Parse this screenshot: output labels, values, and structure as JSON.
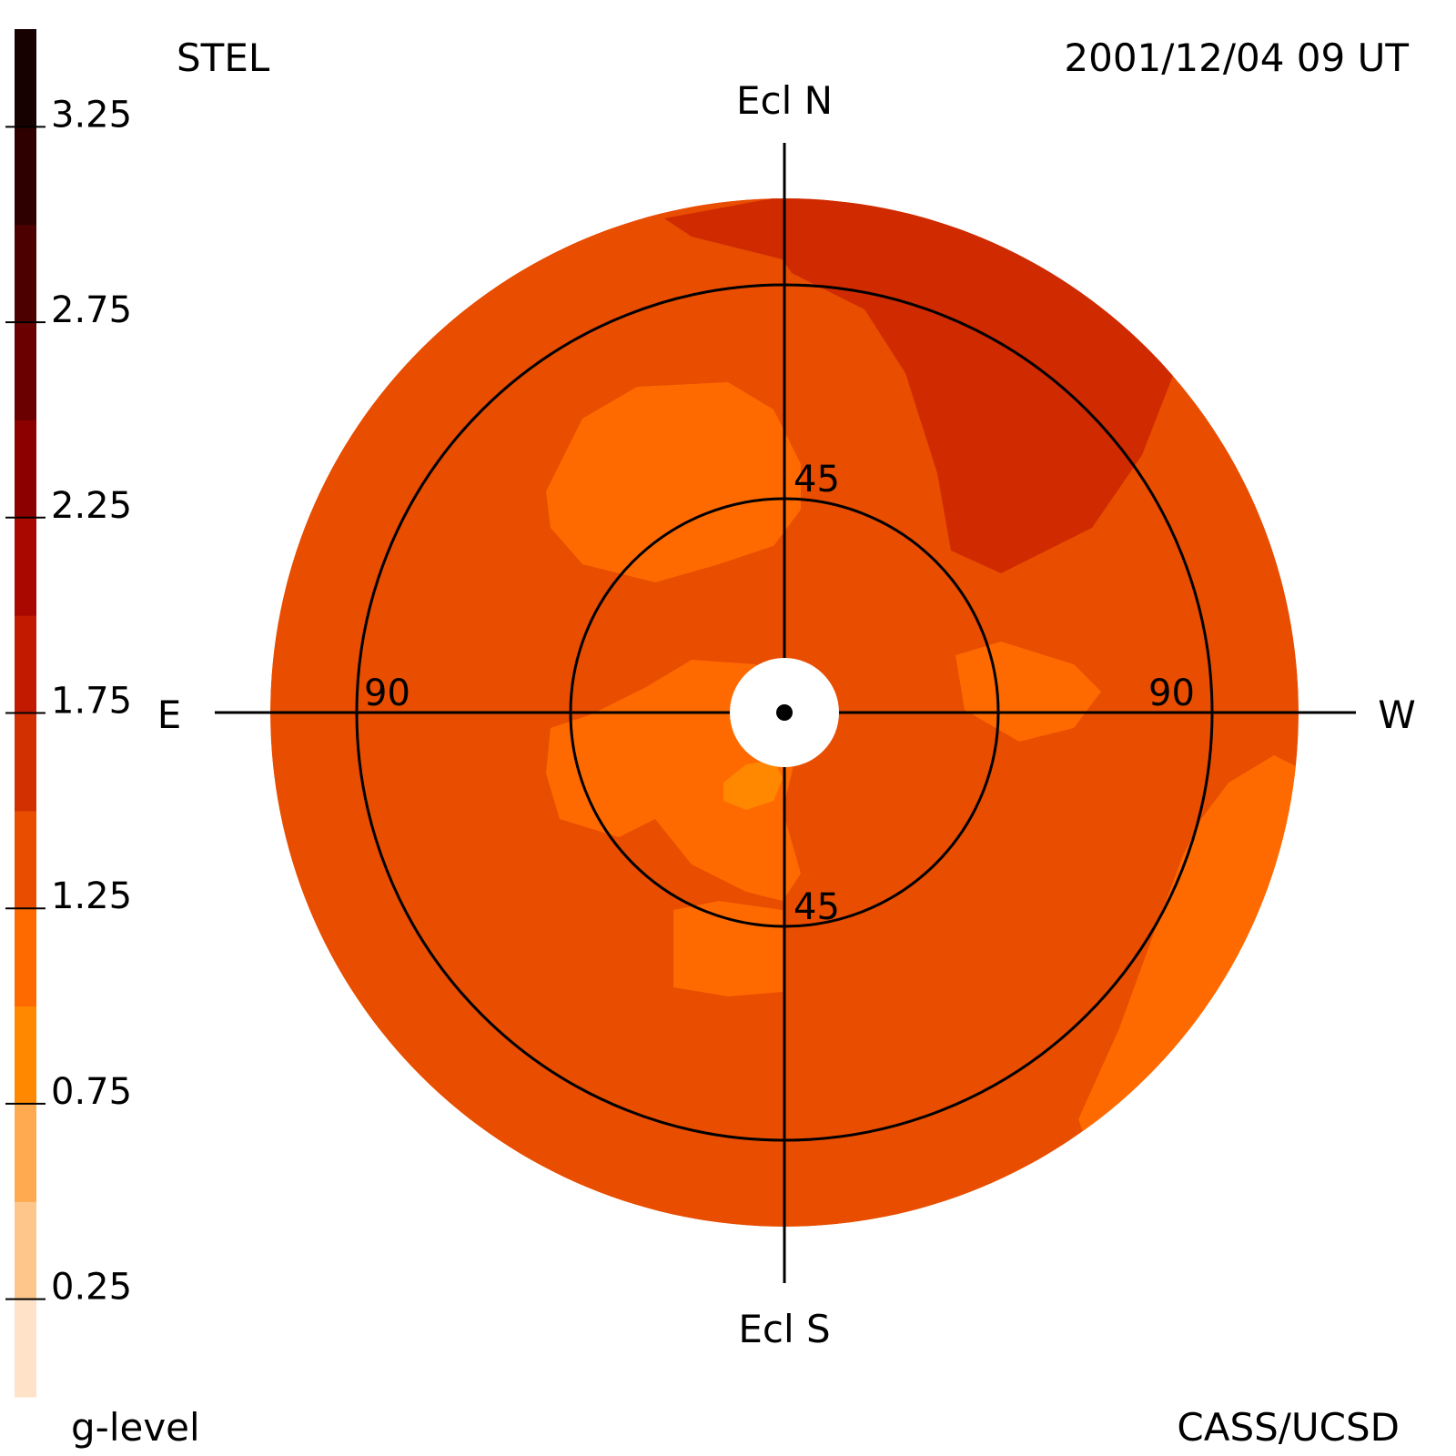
{
  "header": {
    "instrument": "STEL",
    "timestamp": "2001/12/04 09 UT"
  },
  "footer": {
    "credit": "CASS/UCSD"
  },
  "colorbar": {
    "title": "g-level",
    "tick_labels": [
      "3.25",
      "2.75",
      "2.25",
      "1.75",
      "1.25",
      "0.75",
      "0.25"
    ],
    "tick_values": [
      3.25,
      2.75,
      2.25,
      1.75,
      1.25,
      0.75,
      0.25
    ],
    "range": [
      0,
      3.5
    ],
    "band_width": 0.25,
    "colors": [
      "#ffe2c8",
      "#ffc68c",
      "#ffaa50",
      "#ff8800",
      "#ff6a00",
      "#e84d00",
      "#d23000",
      "#c21a00",
      "#a80800",
      "#8c0000",
      "#6a0000",
      "#4d0000",
      "#2e0000",
      "#160000"
    ]
  },
  "directions": {
    "north": "Ecl N",
    "south": "Ecl S",
    "east": "E",
    "west": "W"
  },
  "elongation_rings": {
    "inner": "45",
    "outer": "90"
  },
  "map_colors": {
    "background": "#e84d00",
    "high": "#d02a00",
    "low": "#ff6a00",
    "lowest": "#ff8800"
  }
}
